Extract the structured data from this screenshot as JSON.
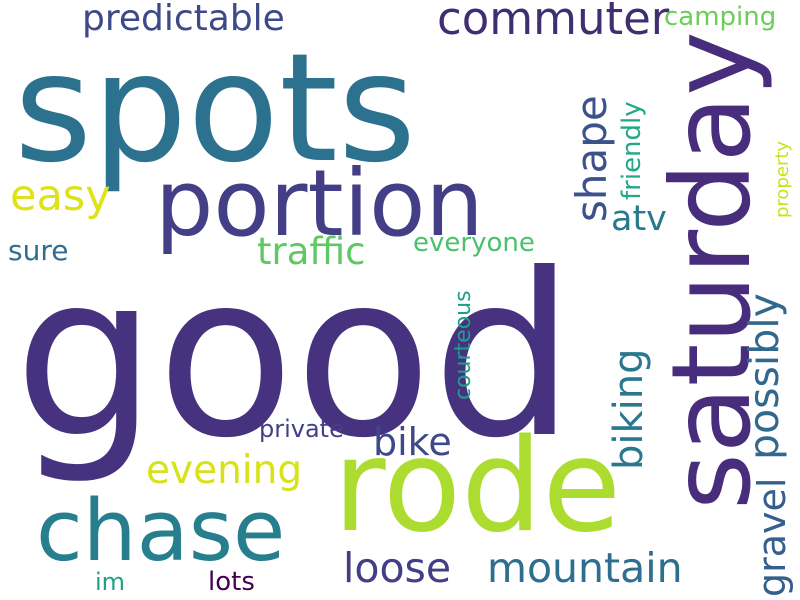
{
  "words": [
    {
      "id": "word-good",
      "text": "good",
      "color": "#46327e"
    },
    {
      "id": "word-spots",
      "text": "spots",
      "color": "#2c728e"
    },
    {
      "id": "word-rode",
      "text": "rode",
      "color": "#addc30"
    },
    {
      "id": "word-saturday",
      "text": "saturday",
      "color": "#472d7b"
    },
    {
      "id": "word-portion",
      "text": "portion",
      "color": "#433e85"
    },
    {
      "id": "word-chase",
      "text": "chase",
      "color": "#277f8e"
    },
    {
      "id": "word-commuter",
      "text": "commuter",
      "color": "#3f2f71"
    },
    {
      "id": "word-predictable",
      "text": "predictable",
      "color": "#3e4989"
    },
    {
      "id": "word-camping",
      "text": "camping",
      "color": "#6ccd5a"
    },
    {
      "id": "word-easy",
      "text": "easy",
      "color": "#dde318"
    },
    {
      "id": "word-shape",
      "text": "shape",
      "color": "#3b528b"
    },
    {
      "id": "word-friendly",
      "text": "friendly",
      "color": "#22a884"
    },
    {
      "id": "word-property",
      "text": "property",
      "color": "#cae11f"
    },
    {
      "id": "word-atv",
      "text": "atv",
      "color": "#2a788e"
    },
    {
      "id": "word-sure",
      "text": "sure",
      "color": "#2e6e8e"
    },
    {
      "id": "word-traffic",
      "text": "traffic",
      "color": "#5ec962"
    },
    {
      "id": "word-everyone",
      "text": "everyone",
      "color": "#4ac16d"
    },
    {
      "id": "word-possibly",
      "text": "possibly",
      "color": "#31688e"
    },
    {
      "id": "word-courteous",
      "text": "courteous",
      "color": "#1f9e89"
    },
    {
      "id": "word-biking",
      "text": "biking",
      "color": "#2a788e"
    },
    {
      "id": "word-bike",
      "text": "bike",
      "color": "#3e4989"
    },
    {
      "id": "word-private",
      "text": "private",
      "color": "#424086"
    },
    {
      "id": "word-evening",
      "text": "evening",
      "color": "#d8e219"
    },
    {
      "id": "word-gravel",
      "text": "gravel",
      "color": "#355f8d"
    },
    {
      "id": "word-loose",
      "text": "loose",
      "color": "#433e85"
    },
    {
      "id": "word-mountain",
      "text": "mountain",
      "color": "#2e6e8e"
    },
    {
      "id": "word-im",
      "text": "im",
      "color": "#1fa187"
    },
    {
      "id": "word-lots",
      "text": "lots",
      "color": "#440154"
    }
  ]
}
